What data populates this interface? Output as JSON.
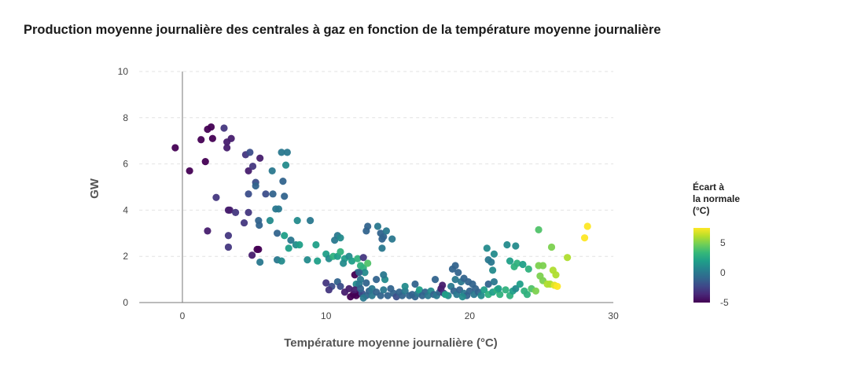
{
  "chart_data": {
    "type": "scatter",
    "title": "Production moyenne journalière des centrales à gaz en fonction de la température moyenne journalière",
    "xlabel": "Température moyenne journalière (°C)",
    "ylabel": "GW",
    "xlim": [
      -3,
      30
    ],
    "ylim": [
      0,
      10
    ],
    "xticks": [
      "0",
      "10",
      "20",
      "30"
    ],
    "yticks": [
      "0",
      "2",
      "4",
      "6",
      "8",
      "10"
    ],
    "grid": "horizontal dashed",
    "colorbar": {
      "title_lines": [
        "Écart à",
        "la normale",
        "(°C)"
      ],
      "range": [
        -5,
        7.5
      ],
      "ticks": [
        "5",
        "0",
        "-5"
      ],
      "colormap": [
        "#440154",
        "#482878",
        "#3e4989",
        "#31688e",
        "#26828e",
        "#1f9e89",
        "#35b779",
        "#6ece58",
        "#b5de2b",
        "#fde725"
      ],
      "placement": "right"
    },
    "point_fields": [
      "temperature",
      "gw",
      "ecart"
    ],
    "points": [
      [
        -0.5,
        6.7,
        -6
      ],
      [
        0.5,
        5.7,
        -6
      ],
      [
        1.3,
        7.05,
        -5
      ],
      [
        1.6,
        6.1,
        -5
      ],
      [
        1.75,
        7.5,
        -5
      ],
      [
        2.0,
        7.6,
        -5
      ],
      [
        2.1,
        7.1,
        -5
      ],
      [
        2.9,
        7.55,
        -3
      ],
      [
        3.1,
        6.7,
        -4
      ],
      [
        3.4,
        7.1,
        -4
      ],
      [
        3.1,
        6.95,
        -4
      ],
      [
        1.75,
        3.1,
        -4
      ],
      [
        2.35,
        4.55,
        -3
      ],
      [
        3.2,
        4.0,
        -4
      ],
      [
        3.3,
        4.0,
        -4
      ],
      [
        3.7,
        3.9,
        -3
      ],
      [
        3.2,
        2.9,
        -3
      ],
      [
        3.2,
        2.4,
        -3
      ],
      [
        4.3,
        3.45,
        -3
      ],
      [
        4.4,
        6.4,
        -3
      ],
      [
        4.7,
        6.5,
        -2
      ],
      [
        4.6,
        5.7,
        -4
      ],
      [
        4.9,
        5.9,
        -3
      ],
      [
        5.1,
        5.2,
        -2
      ],
      [
        5.1,
        5.05,
        -1
      ],
      [
        5.4,
        6.25,
        -4
      ],
      [
        4.6,
        4.7,
        -2
      ],
      [
        4.6,
        3.9,
        -3
      ],
      [
        5.3,
        3.55,
        -1
      ],
      [
        5.35,
        3.35,
        -1
      ],
      [
        4.85,
        2.05,
        -4
      ],
      [
        5.2,
        2.3,
        -5
      ],
      [
        5.3,
        2.3,
        -5
      ],
      [
        5.4,
        1.75,
        0
      ],
      [
        5.8,
        4.7,
        -2
      ],
      [
        6.25,
        5.7,
        0
      ],
      [
        6.3,
        4.7,
        -1
      ],
      [
        6.5,
        4.05,
        0
      ],
      [
        6.7,
        4.05,
        0
      ],
      [
        6.9,
        6.5,
        0
      ],
      [
        7.3,
        6.5,
        0
      ],
      [
        7.2,
        5.95,
        1
      ],
      [
        7.0,
        5.25,
        -1
      ],
      [
        7.1,
        4.6,
        -1
      ],
      [
        6.6,
        3.0,
        -1
      ],
      [
        6.1,
        3.55,
        1
      ],
      [
        7.1,
        2.9,
        2
      ],
      [
        7.55,
        2.7,
        0
      ],
      [
        7.4,
        2.35,
        2
      ],
      [
        7.9,
        2.5,
        1
      ],
      [
        8.15,
        2.5,
        2
      ],
      [
        8.0,
        3.55,
        1
      ],
      [
        8.9,
        3.55,
        0
      ],
      [
        6.6,
        1.85,
        0
      ],
      [
        6.9,
        1.8,
        1
      ],
      [
        8.7,
        1.85,
        1
      ],
      [
        9.3,
        2.5,
        2
      ],
      [
        9.4,
        1.8,
        2
      ],
      [
        10.0,
        2.1,
        2
      ],
      [
        10.2,
        1.9,
        1
      ],
      [
        10.5,
        2.0,
        3
      ],
      [
        10.8,
        2.0,
        2
      ],
      [
        10.6,
        2.7,
        0
      ],
      [
        10.8,
        2.9,
        0
      ],
      [
        11.0,
        2.8,
        1
      ],
      [
        11.0,
        2.2,
        3
      ],
      [
        11.3,
        1.9,
        2
      ],
      [
        11.6,
        2.0,
        1
      ],
      [
        11.2,
        1.7,
        1
      ],
      [
        11.8,
        1.8,
        2
      ],
      [
        12.2,
        1.9,
        3
      ],
      [
        12.4,
        1.6,
        3
      ],
      [
        12.6,
        1.5,
        3
      ],
      [
        12.9,
        1.7,
        4
      ],
      [
        12.7,
        1.3,
        1
      ],
      [
        12.2,
        1.3,
        0
      ],
      [
        12.4,
        1.0,
        0
      ],
      [
        12.1,
        0.8,
        1
      ],
      [
        12.8,
        0.85,
        -1
      ],
      [
        12.6,
        1.95,
        -3
      ],
      [
        10.0,
        0.85,
        -3
      ],
      [
        10.4,
        0.7,
        -2
      ],
      [
        10.2,
        0.55,
        -3
      ],
      [
        10.8,
        0.9,
        -1
      ],
      [
        11.0,
        0.7,
        -2
      ],
      [
        11.3,
        0.45,
        -4
      ],
      [
        11.6,
        0.6,
        -4
      ],
      [
        11.9,
        0.35,
        -6
      ],
      [
        12.1,
        0.3,
        -6
      ],
      [
        12.3,
        0.4,
        -5
      ],
      [
        11.7,
        0.25,
        -6
      ],
      [
        12.0,
        0.55,
        -4
      ],
      [
        12.3,
        0.8,
        0
      ],
      [
        12.5,
        0.4,
        -2
      ],
      [
        12.8,
        0.3,
        -1
      ],
      [
        13.0,
        0.5,
        -1
      ],
      [
        13.2,
        0.3,
        0
      ],
      [
        12.4,
        0.6,
        -1
      ],
      [
        12.6,
        0.2,
        0
      ],
      [
        12.0,
        1.2,
        -5
      ],
      [
        12.3,
        1.3,
        -1
      ],
      [
        12.8,
        3.1,
        -1
      ],
      [
        12.9,
        3.3,
        -1
      ],
      [
        13.6,
        3.3,
        0
      ],
      [
        13.8,
        3.0,
        -1
      ],
      [
        14.0,
        2.85,
        -1
      ],
      [
        14.2,
        3.1,
        0
      ],
      [
        13.9,
        2.75,
        -1
      ],
      [
        14.6,
        2.75,
        0
      ],
      [
        13.9,
        2.35,
        0
      ],
      [
        14.1,
        1.0,
        1
      ],
      [
        14.0,
        1.2,
        0
      ],
      [
        13.5,
        1.0,
        -1
      ],
      [
        13.2,
        0.6,
        0
      ],
      [
        13.5,
        0.45,
        -1
      ],
      [
        13.8,
        0.3,
        -1
      ],
      [
        14.0,
        0.55,
        0
      ],
      [
        14.3,
        0.3,
        -1
      ],
      [
        14.5,
        0.6,
        -1
      ],
      [
        14.7,
        0.4,
        -1
      ],
      [
        14.9,
        0.25,
        -2
      ],
      [
        15.1,
        0.45,
        -1
      ],
      [
        15.3,
        0.3,
        -1
      ],
      [
        15.5,
        0.5,
        0
      ],
      [
        15.8,
        0.3,
        -1
      ],
      [
        16.0,
        0.35,
        -1
      ],
      [
        16.2,
        0.25,
        -1
      ],
      [
        16.4,
        0.4,
        0
      ],
      [
        16.5,
        0.55,
        2
      ],
      [
        16.7,
        0.3,
        -1
      ],
      [
        16.9,
        0.45,
        -1
      ],
      [
        17.1,
        0.3,
        0
      ],
      [
        17.3,
        0.5,
        1
      ],
      [
        17.5,
        0.35,
        -1
      ],
      [
        17.7,
        0.3,
        0
      ],
      [
        17.9,
        0.45,
        -1
      ],
      [
        18.0,
        0.6,
        -4
      ],
      [
        18.2,
        0.4,
        -3
      ],
      [
        17.6,
        1.0,
        -1
      ],
      [
        18.1,
        0.75,
        -4
      ],
      [
        16.2,
        0.8,
        -1
      ],
      [
        15.5,
        0.7,
        1
      ],
      [
        18.8,
        1.45,
        -1
      ],
      [
        19.0,
        1.6,
        -1
      ],
      [
        19.2,
        1.3,
        -1
      ],
      [
        19.0,
        1.0,
        0
      ],
      [
        19.4,
        0.9,
        0
      ],
      [
        19.6,
        1.05,
        -1
      ],
      [
        19.9,
        0.9,
        -1
      ],
      [
        20.2,
        0.8,
        -1
      ],
      [
        20.4,
        0.6,
        -1
      ],
      [
        18.7,
        0.7,
        0
      ],
      [
        18.9,
        0.5,
        -1
      ],
      [
        19.1,
        0.35,
        0
      ],
      [
        19.3,
        0.55,
        -1
      ],
      [
        19.6,
        0.4,
        0
      ],
      [
        19.8,
        0.3,
        -1
      ],
      [
        20.0,
        0.5,
        -1
      ],
      [
        20.3,
        0.35,
        0
      ],
      [
        20.6,
        0.45,
        -1
      ],
      [
        18.5,
        0.3,
        1
      ],
      [
        18.3,
        0.35,
        2
      ],
      [
        19.5,
        0.25,
        1
      ],
      [
        20.8,
        0.3,
        1
      ],
      [
        21.0,
        0.55,
        2
      ],
      [
        21.3,
        0.35,
        3
      ],
      [
        21.6,
        0.45,
        2
      ],
      [
        21.9,
        0.55,
        3
      ],
      [
        22.1,
        0.35,
        3
      ],
      [
        21.3,
        0.8,
        -1
      ],
      [
        21.7,
        0.9,
        0
      ],
      [
        22.0,
        0.6,
        2
      ],
      [
        22.5,
        0.55,
        3
      ],
      [
        22.8,
        0.3,
        3
      ],
      [
        23.0,
        0.5,
        2
      ],
      [
        23.2,
        0.6,
        1
      ],
      [
        23.5,
        0.8,
        2
      ],
      [
        23.8,
        0.5,
        3
      ],
      [
        24.0,
        0.35,
        3
      ],
      [
        24.3,
        0.6,
        4
      ],
      [
        24.6,
        0.5,
        5
      ],
      [
        21.2,
        2.35,
        1
      ],
      [
        21.7,
        2.1,
        1
      ],
      [
        22.6,
        2.5,
        1
      ],
      [
        23.2,
        2.45,
        1
      ],
      [
        21.3,
        1.85,
        0
      ],
      [
        21.5,
        1.75,
        0
      ],
      [
        21.6,
        1.4,
        1
      ],
      [
        22.8,
        1.8,
        2
      ],
      [
        23.1,
        1.55,
        3
      ],
      [
        23.3,
        1.7,
        3
      ],
      [
        23.7,
        1.65,
        2
      ],
      [
        24.1,
        1.45,
        3
      ],
      [
        24.8,
        3.15,
        4
      ],
      [
        25.1,
        1.6,
        5
      ],
      [
        24.8,
        1.6,
        5
      ],
      [
        24.9,
        1.15,
        5
      ],
      [
        25.1,
        0.95,
        5
      ],
      [
        25.4,
        0.8,
        6
      ],
      [
        25.6,
        0.8,
        6
      ],
      [
        25.8,
        1.4,
        6
      ],
      [
        26.0,
        1.2,
        6
      ],
      [
        25.9,
        0.75,
        7
      ],
      [
        26.1,
        0.7,
        8
      ],
      [
        25.7,
        2.4,
        5
      ],
      [
        26.8,
        1.95,
        6
      ],
      [
        28.0,
        2.8,
        8
      ],
      [
        28.2,
        3.3,
        8
      ]
    ]
  }
}
